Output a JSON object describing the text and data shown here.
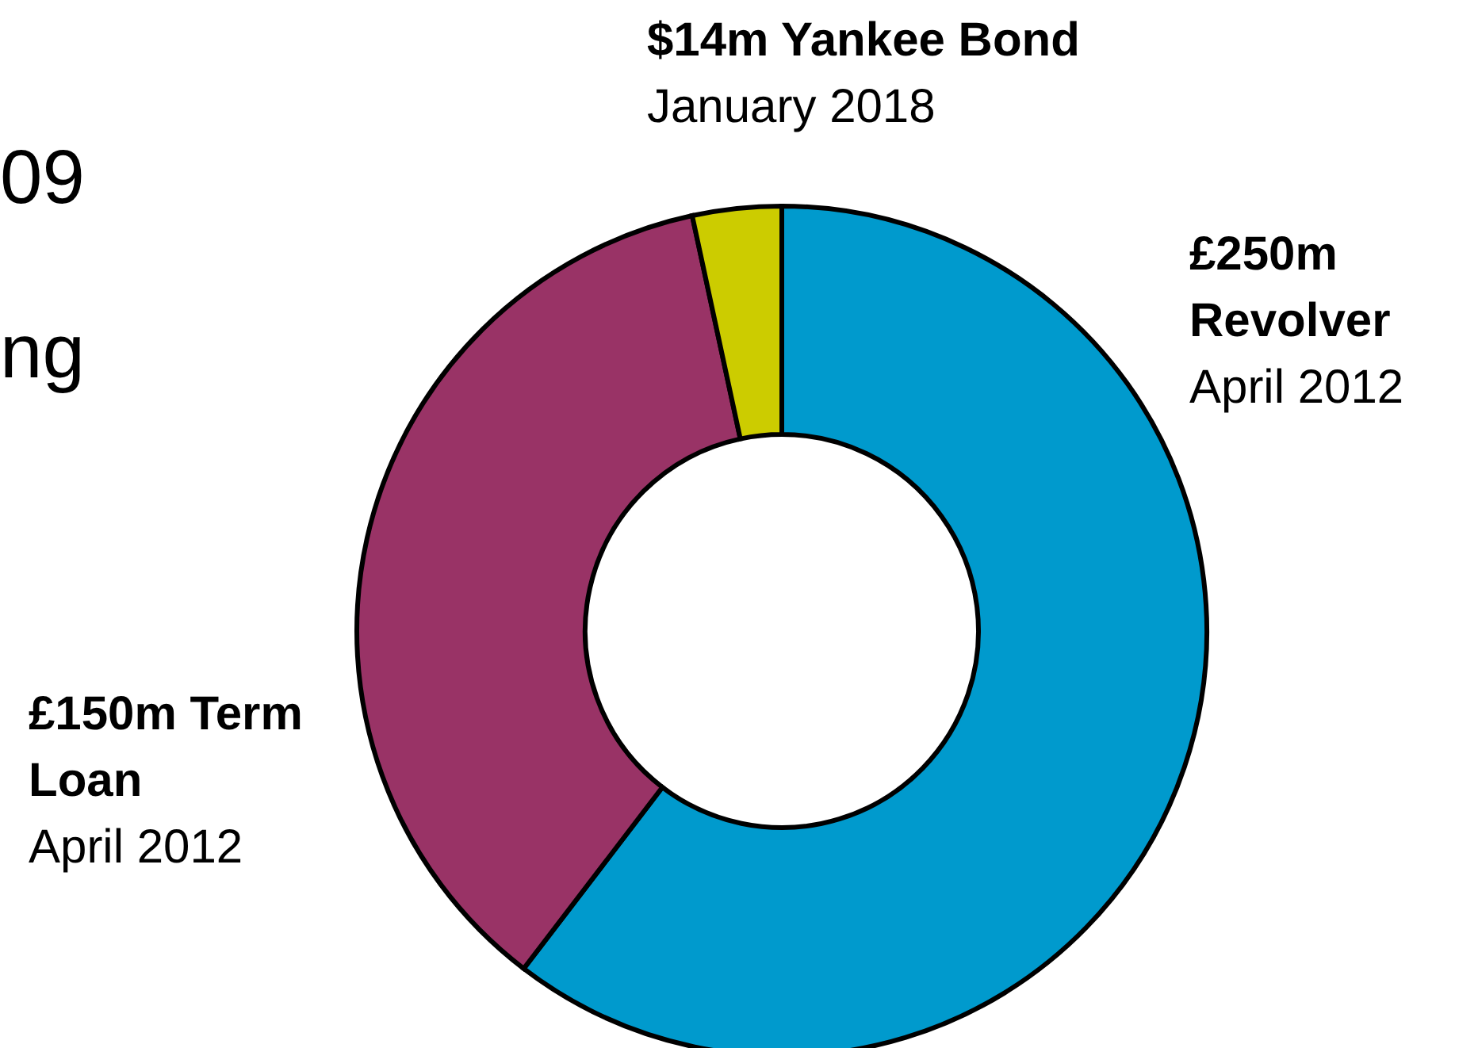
{
  "chart_data": {
    "type": "donut",
    "categories": [
      "£250m Revolver",
      "£150m Term Loan",
      "$14m Yankee Bond"
    ],
    "values": [
      250,
      150,
      14
    ],
    "colors": [
      "#009acd",
      "#993366",
      "#cccc00"
    ],
    "annotations": [
      {
        "text": "April 2012",
        "x": "£250m Revolver"
      },
      {
        "text": "April 2012",
        "x": "£150m Term Loan"
      },
      {
        "text": "January 2018",
        "x": "$14m Yankee Bond"
      },
      "09",
      "ng"
    ]
  }
}
